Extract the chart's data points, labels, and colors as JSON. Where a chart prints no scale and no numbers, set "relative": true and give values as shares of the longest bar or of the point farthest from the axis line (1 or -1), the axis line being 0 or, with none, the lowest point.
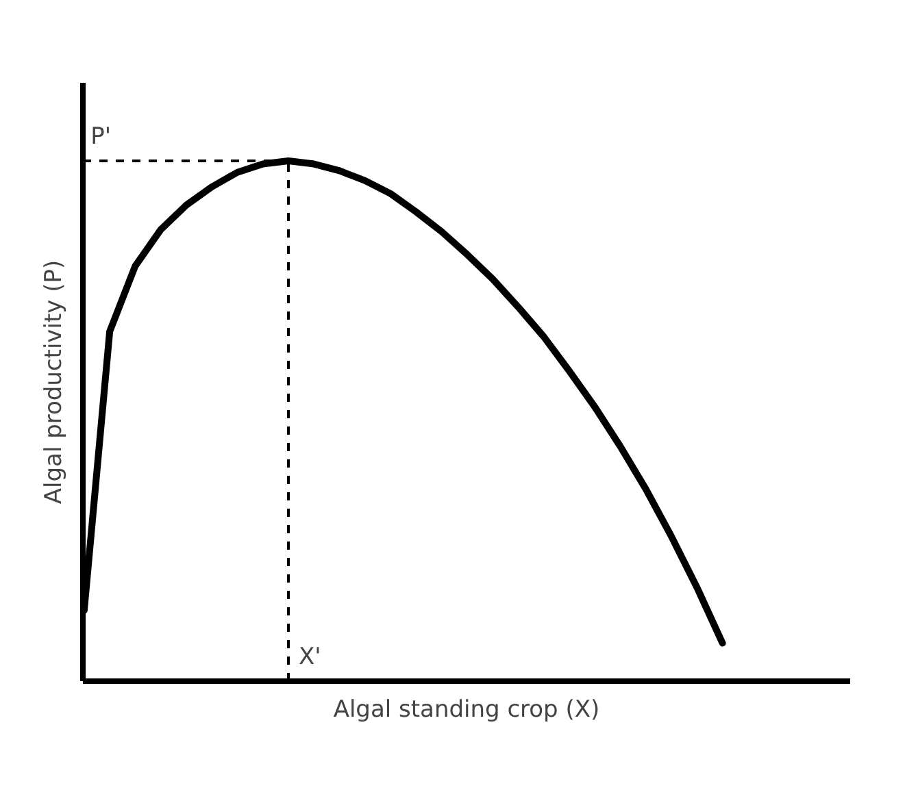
{
  "chart_data": {
    "type": "line",
    "relative": true,
    "xlabel": "Algal standing crop (X)",
    "ylabel": "Algal productivity (P)",
    "categories": [
      null,
      null,
      null,
      null,
      null,
      null,
      null,
      null,
      null,
      null,
      null,
      null,
      null,
      null,
      null,
      null,
      null,
      null,
      null,
      null,
      null,
      null,
      null,
      null,
      null,
      null
    ],
    "series": [
      {
        "color": "#000000",
        "values": [
          0.136,
          0.672,
          0.798,
          0.868,
          0.915,
          0.95,
          0.978,
          0.994,
          1.0,
          0.994,
          0.981,
          0.962,
          0.937,
          0.902,
          0.864,
          0.82,
          0.773,
          0.719,
          0.662,
          0.596,
          0.527,
          0.451,
          0.369,
          0.278,
          0.18,
          0.073
        ]
      }
    ],
    "ref_lines": [
      {
        "axis": "y",
        "value": 1,
        "label": "P'",
        "line_style": "dashed",
        "color": "#000000"
      }
    ],
    "annotations": [
      "X'"
    ],
    "grid": false,
    "line_style": "solid",
    "marker": "none"
  }
}
